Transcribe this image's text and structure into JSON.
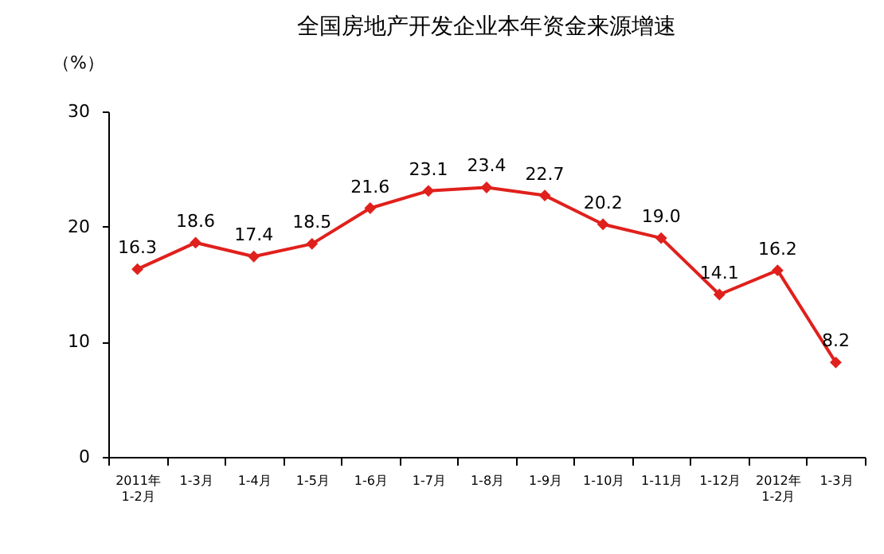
{
  "chart_data": {
    "type": "line",
    "title": "全国房地产开发企业本年资金来源增速",
    "ylabel": "（%）",
    "categories": [
      "2011年 1-2月",
      "1-3月",
      "1-4月",
      "1-5月",
      "1-6月",
      "1-7月",
      "1-8月",
      "1-9月",
      "1-10月",
      "1-11月",
      "1-12月",
      "2012年 1-2月",
      "1-3月"
    ],
    "series": [
      {
        "color": "#e0201c",
        "values": [
          16.3,
          18.6,
          17.4,
          18.5,
          21.6,
          23.1,
          23.4,
          22.7,
          20.2,
          19.0,
          14.1,
          16.2,
          8.2
        ]
      }
    ],
    "value_labels": [
      "16.3",
      "18.6",
      "17.4",
      "18.5",
      "21.6",
      "23.1",
      "23.4",
      "22.7",
      "20.2",
      "19.0",
      "14.1",
      "16.2",
      "8.2"
    ],
    "ylim": [
      0,
      30
    ],
    "yticks": [
      0,
      10,
      20,
      30
    ],
    "marker": "diamond",
    "grid": false,
    "legend": false
  }
}
